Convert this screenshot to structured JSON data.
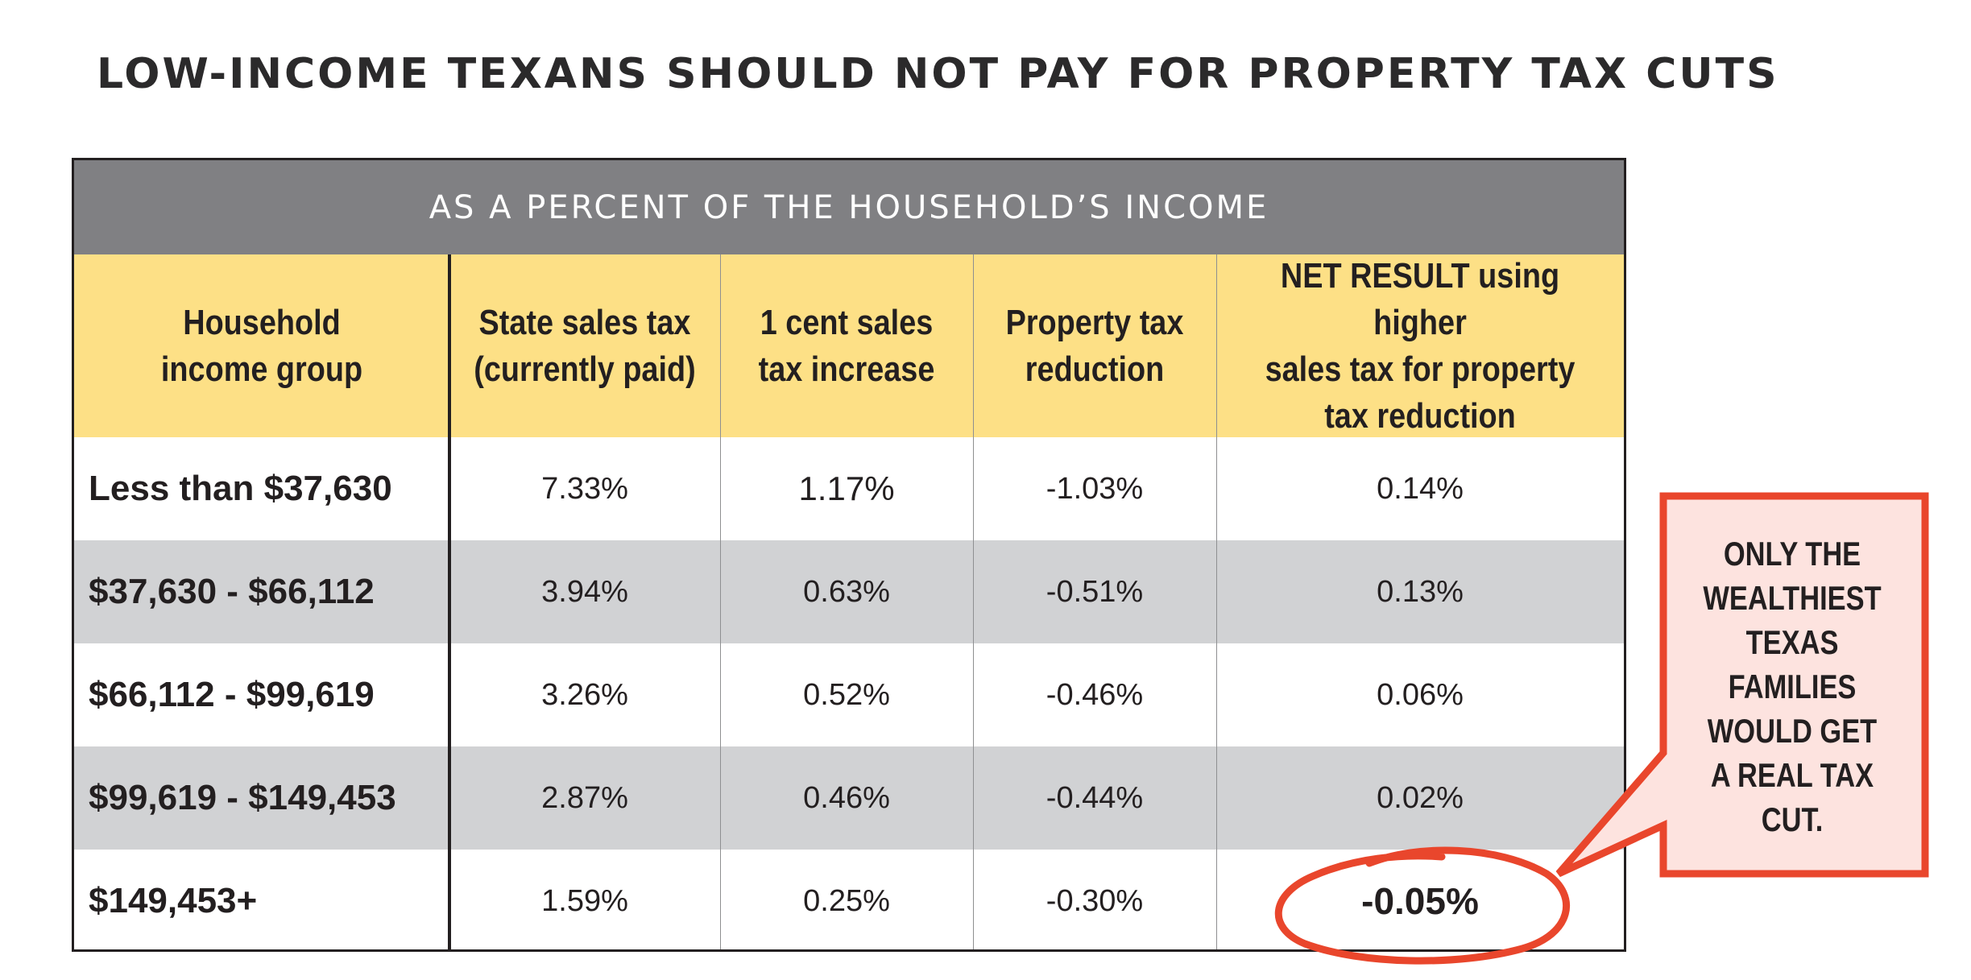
{
  "title": "LOW-INCOME TEXANS SHOULD NOT PAY FOR PROPERTY TAX CUTS",
  "table": {
    "band_label": "AS A PERCENT OF THE HOUSEHOLD’S INCOME",
    "headers": [
      "Household\nincome group",
      "State sales tax\n(currently paid)",
      "1 cent sales\ntax increase",
      "Property tax\nreduction",
      "NET RESULT using higher\nsales tax for property\ntax reduction"
    ],
    "rows": [
      {
        "group": "Less than $37,630",
        "sales_tax": "7.33%",
        "increase": "1.17%",
        "reduction": "-1.03%",
        "net": "0.14%"
      },
      {
        "group": "$37,630 - $66,112",
        "sales_tax": "3.94%",
        "increase": "0.63%",
        "reduction": "-0.51%",
        "net": "0.13%"
      },
      {
        "group": "$66,112 - $99,619",
        "sales_tax": "3.26%",
        "increase": "0.52%",
        "reduction": "-0.46%",
        "net": "0.06%"
      },
      {
        "group": "$99,619 - $149,453",
        "sales_tax": "2.87%",
        "increase": "0.46%",
        "reduction": "-0.44%",
        "net": "0.02%"
      },
      {
        "group": "$149,453+",
        "sales_tax": "1.59%",
        "increase": "0.25%",
        "reduction": "-0.30%",
        "net": "-0.05%"
      }
    ]
  },
  "callout": {
    "text": "ONLY THE\nWEALTHIEST\nTEXAS\nFAMILIES\nWOULD GET\nA REAL TAX\nCUT.",
    "fill_color": "#fde3df",
    "border_color": "#e9462c"
  },
  "colors": {
    "band": "#808083",
    "header_fill": "#fde086",
    "row_shade": "#d1d2d4",
    "highlight_circle": "#e9462c"
  }
}
